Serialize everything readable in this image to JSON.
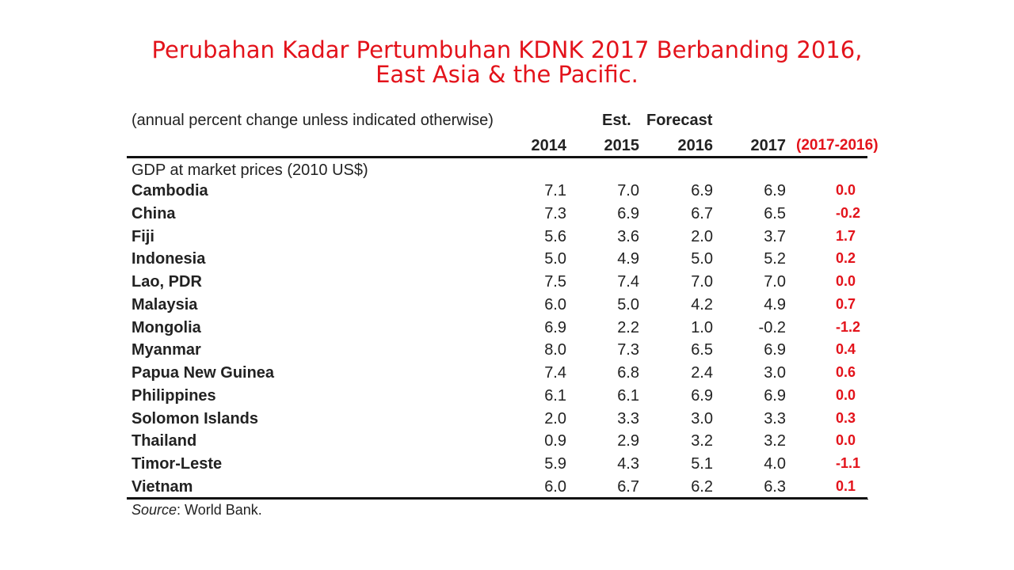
{
  "title_line1": "Perubahan Kadar Pertumbuhan  KDNK 2017 Berbanding 2016,",
  "title_line2": "East Asia & the Pacific.",
  "subtitle": "(annual percent change unless indicated otherwise)",
  "header_est": "Est.",
  "header_forecast": "Forecast",
  "years": [
    "2014",
    "2015",
    "2016",
    "2017"
  ],
  "diff_header": "(2017-2016)",
  "section_label": "GDP at market prices (2010 US$)",
  "rows": [
    {
      "name": "Cambodia",
      "v2014": "7.1",
      "v2015": "7.0",
      "v2016": "6.9",
      "v2017": "6.9",
      "diff": "0.0"
    },
    {
      "name": "China",
      "v2014": "7.3",
      "v2015": "6.9",
      "v2016": "6.7",
      "v2017": "6.5",
      "diff": "-0.2"
    },
    {
      "name": "Fiji",
      "v2014": "5.6",
      "v2015": "3.6",
      "v2016": "2.0",
      "v2017": "3.7",
      "diff": "1.7"
    },
    {
      "name": "Indonesia",
      "v2014": "5.0",
      "v2015": "4.9",
      "v2016": "5.0",
      "v2017": "5.2",
      "diff": "0.2"
    },
    {
      "name": "Lao, PDR",
      "v2014": "7.5",
      "v2015": "7.4",
      "v2016": "7.0",
      "v2017": "7.0",
      "diff": "0.0"
    },
    {
      "name": "Malaysia",
      "v2014": "6.0",
      "v2015": "5.0",
      "v2016": "4.2",
      "v2017": "4.9",
      "diff": "0.7"
    },
    {
      "name": "Mongolia",
      "v2014": "6.9",
      "v2015": "2.2",
      "v2016": "1.0",
      "v2017": "-0.2",
      "diff": "-1.2"
    },
    {
      "name": "Myanmar",
      "v2014": "8.0",
      "v2015": "7.3",
      "v2016": "6.5",
      "v2017": "6.9",
      "diff": "0.4"
    },
    {
      "name": "Papua New Guinea",
      "v2014": "7.4",
      "v2015": "6.8",
      "v2016": "2.4",
      "v2017": "3.0",
      "diff": "0.6"
    },
    {
      "name": "Philippines",
      "v2014": "6.1",
      "v2015": "6.1",
      "v2016": "6.9",
      "v2017": "6.9",
      "diff": "0.0"
    },
    {
      "name": "Solomon Islands",
      "v2014": "2.0",
      "v2015": "3.3",
      "v2016": "3.0",
      "v2017": "3.3",
      "diff": "0.3"
    },
    {
      "name": "Thailand",
      "v2014": "0.9",
      "v2015": "2.9",
      "v2016": "3.2",
      "v2017": "3.2",
      "diff": "0.0"
    },
    {
      "name": "Timor-Leste",
      "v2014": "5.9",
      "v2015": "4.3",
      "v2016": "5.1",
      "v2017": "4.0",
      "diff": "-1.1"
    },
    {
      "name": "Vietnam",
      "v2014": "6.0",
      "v2015": "6.7",
      "v2016": "6.2",
      "v2017": "6.3",
      "diff": "0.1"
    }
  ],
  "source_label": "Source",
  "source_text": ": World Bank.",
  "colors": {
    "title": "#e3131b",
    "diff": "#e3131b",
    "text": "#222222"
  }
}
